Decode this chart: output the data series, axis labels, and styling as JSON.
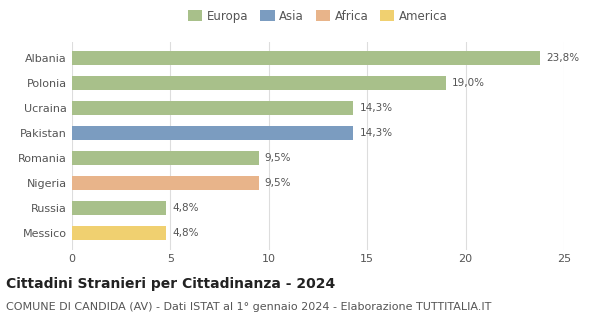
{
  "categories": [
    "Albania",
    "Polonia",
    "Ucraina",
    "Pakistan",
    "Romania",
    "Nigeria",
    "Russia",
    "Messico"
  ],
  "values": [
    23.8,
    19.0,
    14.3,
    14.3,
    9.5,
    9.5,
    4.8,
    4.8
  ],
  "labels": [
    "23,8%",
    "19,0%",
    "14,3%",
    "14,3%",
    "9,5%",
    "9,5%",
    "4,8%",
    "4,8%"
  ],
  "bar_colors": [
    "#a8c08a",
    "#a8c08a",
    "#a8c08a",
    "#7b9cc0",
    "#a8c08a",
    "#e8b48a",
    "#a8c08a",
    "#f0d070"
  ],
  "legend_items": [
    {
      "label": "Europa",
      "color": "#a8c08a"
    },
    {
      "label": "Asia",
      "color": "#7b9cc0"
    },
    {
      "label": "Africa",
      "color": "#e8b48a"
    },
    {
      "label": "America",
      "color": "#f0d070"
    }
  ],
  "xlim": [
    0,
    25
  ],
  "xticks": [
    0,
    5,
    10,
    15,
    20,
    25
  ],
  "title": "Cittadini Stranieri per Cittadinanza - 2024",
  "subtitle": "COMUNE DI CANDIDA (AV) - Dati ISTAT al 1° gennaio 2024 - Elaborazione TUTTITALIA.IT",
  "title_fontsize": 10,
  "subtitle_fontsize": 8,
  "label_fontsize": 7.5,
  "tick_fontsize": 8,
  "legend_fontsize": 8.5,
  "background_color": "#ffffff",
  "grid_color": "#dddddd",
  "bar_height": 0.55
}
